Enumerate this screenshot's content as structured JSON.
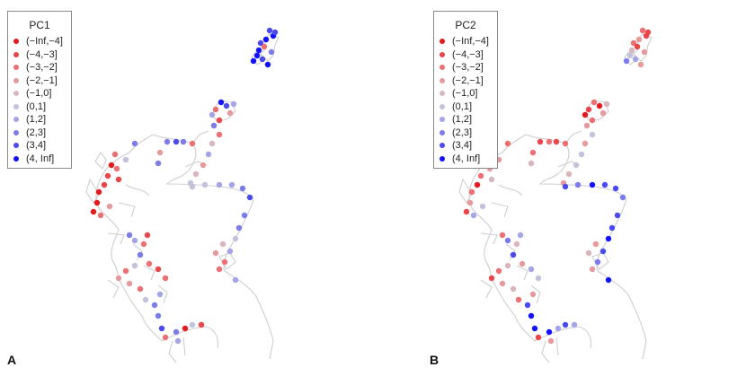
{
  "panels": [
    {
      "id": "A",
      "label": "A",
      "legend_title": "PC1",
      "legend_items": [
        "(−Inf,−4]",
        "(−4,−3]",
        "(−3,−2]",
        "(−2,−1]",
        "(−1,0]",
        "(0,1]",
        "(1,2]",
        "(2,3]",
        "(3,4]",
        "(4, Inf]"
      ],
      "bins": [
        "neg5",
        "neg4",
        "neg3",
        "neg2",
        "neg1",
        "pos1",
        "pos2",
        "pos3",
        "pos4",
        "pos5"
      ]
    },
    {
      "id": "B",
      "label": "B",
      "legend_title": "PC2",
      "legend_items": [
        "(−Inf,−4]",
        "(−4,−3]",
        "(−3,−2]",
        "(−2,−1]",
        "(−1,0]",
        "(0,1]",
        "(1,2]",
        "(2,3]",
        "(3,4]",
        "(4, Inf]"
      ],
      "bins": [
        "neg5",
        "neg4",
        "neg3",
        "neg2",
        "neg1",
        "pos1",
        "pos2",
        "pos3",
        "pos4",
        "pos5"
      ]
    }
  ],
  "colors": {
    "neg5": "#e41a1c",
    "neg4": "#e8464a",
    "neg3": "#ec7073",
    "neg2": "#e79a9c",
    "neg1": "#d9b6bb",
    "pos1": "#c2c2dc",
    "pos2": "#a4a4e6",
    "pos3": "#7b7bea",
    "pos4": "#4a4aef",
    "pos5": "#1212ff",
    "coastline": "#cfcfcf"
  }
}
